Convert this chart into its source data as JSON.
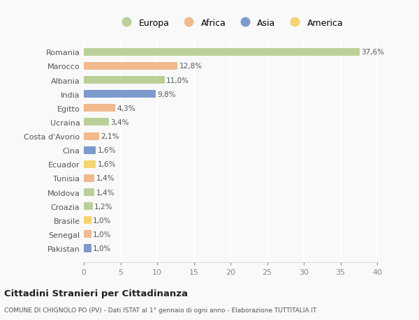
{
  "countries": [
    "Romania",
    "Marocco",
    "Albania",
    "India",
    "Egitto",
    "Ucraina",
    "Costa d'Avorio",
    "Cina",
    "Ecuador",
    "Tunisia",
    "Moldova",
    "Croazia",
    "Brasile",
    "Senegal",
    "Pakistan"
  ],
  "values": [
    37.6,
    12.8,
    11.0,
    9.8,
    4.3,
    3.4,
    2.1,
    1.6,
    1.6,
    1.4,
    1.4,
    1.2,
    1.0,
    1.0,
    1.0
  ],
  "labels": [
    "37,6%",
    "12,8%",
    "11,0%",
    "9,8%",
    "4,3%",
    "3,4%",
    "2,1%",
    "1,6%",
    "1,6%",
    "1,4%",
    "1,4%",
    "1,2%",
    "1,0%",
    "1,0%",
    "1,0%"
  ],
  "continents": [
    "Europa",
    "Africa",
    "Europa",
    "Asia",
    "Africa",
    "Europa",
    "Africa",
    "Asia",
    "America",
    "Africa",
    "Europa",
    "Europa",
    "America",
    "Africa",
    "Asia"
  ],
  "colors": {
    "Europa": "#b5cc8e",
    "Africa": "#f2b280",
    "Asia": "#7090c8",
    "America": "#f5d060"
  },
  "legend_order": [
    "Europa",
    "Africa",
    "Asia",
    "America"
  ],
  "title": "Cittadini Stranieri per Cittadinanza",
  "subtitle": "COMUNE DI CHIGNOLO PO (PV) - Dati ISTAT al 1° gennaio di ogni anno - Elaborazione TUTTITALIA.IT",
  "xlim": [
    0,
    40
  ],
  "xticks": [
    0,
    5,
    10,
    15,
    20,
    25,
    30,
    35,
    40
  ],
  "background_color": "#f9f9f9",
  "grid_color": "#ffffff"
}
